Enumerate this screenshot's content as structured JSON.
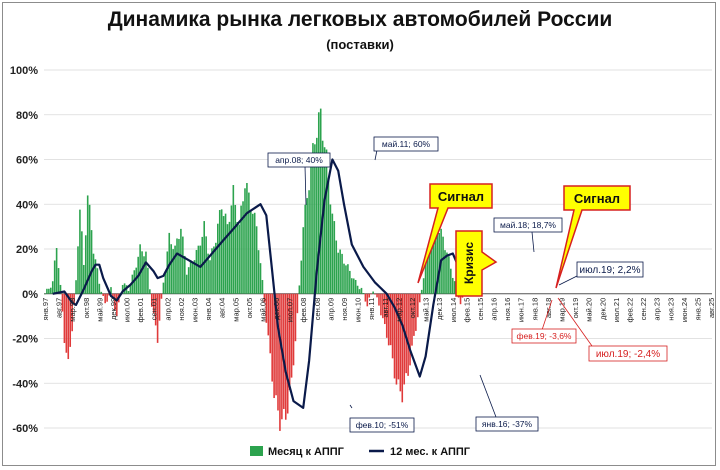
{
  "chart_data": {
    "type": "bar",
    "title": "Динамика рынка легковых автомобилей России",
    "subtitle": "(поставки)",
    "ylim": [
      -0.6,
      1.0
    ],
    "y_ticks": [
      "100%",
      "80%",
      "60%",
      "40%",
      "20%",
      "0%",
      "-20%",
      "-40%",
      "-60%"
    ],
    "x_ticks": [
      "янв.97",
      "авг.97",
      "мар.98",
      "окт.98",
      "май.99",
      "дек.99",
      "июл.00",
      "фев.01",
      "сен.01",
      "апр.02",
      "ноя.02",
      "июн.03",
      "янв.04",
      "авг.04",
      "мар.05",
      "окт.05",
      "май.06",
      "дек.06",
      "июл.07",
      "фев.08",
      "сен.08",
      "апр.09",
      "ноя.09",
      "июн.10",
      "янв.11",
      "авг.11",
      "мар.12",
      "окт.12",
      "май.13",
      "дек.13",
      "июл.14",
      "фев.15",
      "сен.15",
      "апр.16",
      "ноя.16",
      "июн.17",
      "янв.18",
      "авг.18",
      "мар.19",
      "окт.19",
      "май.20",
      "дек.20",
      "июл.21",
      "фев.22",
      "сен.22",
      "апр.23",
      "ноя.23",
      "июн.24",
      "янв.25",
      "авг.25"
    ],
    "monthly_series": {
      "name": "Месяц к АППГ",
      "color_pos": "#2ca34e",
      "color_neg": "#e03a3a",
      "anchors": [
        [
          0,
          0.0
        ],
        [
          4,
          0.05
        ],
        [
          6,
          0.22
        ],
        [
          8,
          0.03
        ],
        [
          10,
          -0.2
        ],
        [
          12,
          -0.32
        ],
        [
          14,
          -0.15
        ],
        [
          16,
          0.05
        ],
        [
          18,
          0.4
        ],
        [
          20,
          0.12
        ],
        [
          22,
          0.45
        ],
        [
          25,
          0.2
        ],
        [
          28,
          0.05
        ],
        [
          31,
          -0.05
        ],
        [
          34,
          0.02
        ],
        [
          37,
          -0.1
        ],
        [
          40,
          0.05
        ],
        [
          43,
          0.02
        ],
        [
          46,
          0.1
        ],
        [
          49,
          0.2
        ],
        [
          52,
          0.18
        ],
        [
          55,
          -0.05
        ],
        [
          58,
          -0.2
        ],
        [
          61,
          0.05
        ],
        [
          64,
          0.25
        ],
        [
          67,
          0.2
        ],
        [
          70,
          0.3
        ],
        [
          73,
          0.1
        ],
        [
          76,
          0.15
        ],
        [
          79,
          0.2
        ],
        [
          82,
          0.3
        ],
        [
          85,
          0.15
        ],
        [
          88,
          0.25
        ],
        [
          91,
          0.4
        ],
        [
          94,
          0.3
        ],
        [
          97,
          0.45
        ],
        [
          100,
          0.3
        ],
        [
          103,
          0.5
        ],
        [
          106,
          0.4
        ],
        [
          109,
          0.3
        ],
        [
          112,
          0.05
        ],
        [
          115,
          -0.2
        ],
        [
          118,
          -0.45
        ],
        [
          121,
          -0.57
        ],
        [
          124,
          -0.55
        ],
        [
          127,
          -0.4
        ],
        [
          130,
          -0.1
        ],
        [
          133,
          0.3
        ],
        [
          136,
          0.5
        ],
        [
          139,
          0.7
        ],
        [
          142,
          0.8
        ],
        [
          145,
          0.6
        ],
        [
          148,
          0.35
        ],
        [
          151,
          0.2
        ],
        [
          154,
          0.15
        ],
        [
          157,
          0.1
        ],
        [
          160,
          0.05
        ],
        [
          163,
          0.02
        ],
        [
          166,
          -0.05
        ],
        [
          169,
          0.02
        ],
        [
          172,
          -0.05
        ],
        [
          175,
          -0.15
        ],
        [
          178,
          -0.25
        ],
        [
          181,
          -0.4
        ],
        [
          184,
          -0.45
        ],
        [
          187,
          -0.35
        ],
        [
          190,
          -0.2
        ],
        [
          193,
          -0.05
        ],
        [
          196,
          0.15
        ],
        [
          199,
          0.25
        ],
        [
          202,
          0.3
        ],
        [
          205,
          0.25
        ],
        [
          208,
          0.15
        ],
        [
          211,
          0.05
        ],
        [
          214,
          -0.04
        ],
        [
          217,
          0.0
        ],
        [
          219,
          0.0
        ]
      ]
    },
    "rolling_series": {
      "name": "12 мес. к АППГ",
      "color": "#0a1a4a",
      "points": [
        [
          4,
          0.0
        ],
        [
          10,
          0.01
        ],
        [
          14,
          -0.04
        ],
        [
          16,
          -0.05
        ],
        [
          20,
          0.02
        ],
        [
          24,
          0.1
        ],
        [
          26,
          0.13
        ],
        [
          28,
          0.13
        ],
        [
          30,
          0.07
        ],
        [
          34,
          -0.01
        ],
        [
          37,
          -0.03
        ],
        [
          40,
          0.01
        ],
        [
          44,
          0.04
        ],
        [
          48,
          0.08
        ],
        [
          52,
          0.14
        ],
        [
          56,
          0.1
        ],
        [
          58,
          0.07
        ],
        [
          61,
          0.08
        ],
        [
          64,
          0.13
        ],
        [
          68,
          0.18
        ],
        [
          72,
          0.16
        ],
        [
          76,
          0.14
        ],
        [
          80,
          0.12
        ],
        [
          86,
          0.18
        ],
        [
          92,
          0.24
        ],
        [
          98,
          0.3
        ],
        [
          104,
          0.36
        ],
        [
          111,
          0.4
        ],
        [
          114,
          0.35
        ],
        [
          117,
          0.1
        ],
        [
          120,
          -0.15
        ],
        [
          124,
          -0.35
        ],
        [
          128,
          -0.48
        ],
        [
          133,
          -0.51
        ],
        [
          136,
          -0.3
        ],
        [
          140,
          0.1
        ],
        [
          144,
          0.42
        ],
        [
          148,
          0.6
        ],
        [
          151,
          0.55
        ],
        [
          154,
          0.4
        ],
        [
          158,
          0.22
        ],
        [
          164,
          0.12
        ],
        [
          170,
          0.05
        ],
        [
          176,
          0.0
        ],
        [
          180,
          -0.06
        ],
        [
          184,
          -0.14
        ],
        [
          188,
          -0.25
        ],
        [
          193,
          -0.37
        ],
        [
          196,
          -0.28
        ],
        [
          200,
          -0.05
        ],
        [
          204,
          0.15
        ],
        [
          207,
          0.17
        ],
        [
          210,
          0.18
        ],
        [
          214,
          0.1
        ],
        [
          218,
          0.05
        ],
        [
          220,
          0.03
        ],
        [
          224,
          0.022
        ]
      ]
    },
    "callouts": [
      {
        "text": "Сигнал",
        "color": "#ffff00"
      },
      {
        "text": "Сигнал",
        "color": "#ffff00"
      }
    ],
    "crisis_label": "Кризис",
    "annotations": [
      {
        "text": "апр.08; 40%",
        "color": "#0a1a4a"
      },
      {
        "text": "май.11; 60%",
        "color": "#0a1a4a"
      },
      {
        "text": "фев.10; -51%",
        "color": "#0a1a4a"
      },
      {
        "text": "янв.16; -37%",
        "color": "#0a1a4a"
      },
      {
        "text": "май.18; 18,7%",
        "color": "#0a1a4a"
      },
      {
        "text": "июл.19; 2,2%",
        "color": "#0a1a4a"
      },
      {
        "text": "фев.19; -3,6%",
        "color": "#d62020"
      },
      {
        "text": "июл.19; -2,4%",
        "color": "#d62020"
      }
    ],
    "legend": {
      "placement": "bottom",
      "items": [
        "Месяц к АППГ",
        "12 мес. к АППГ"
      ]
    }
  }
}
